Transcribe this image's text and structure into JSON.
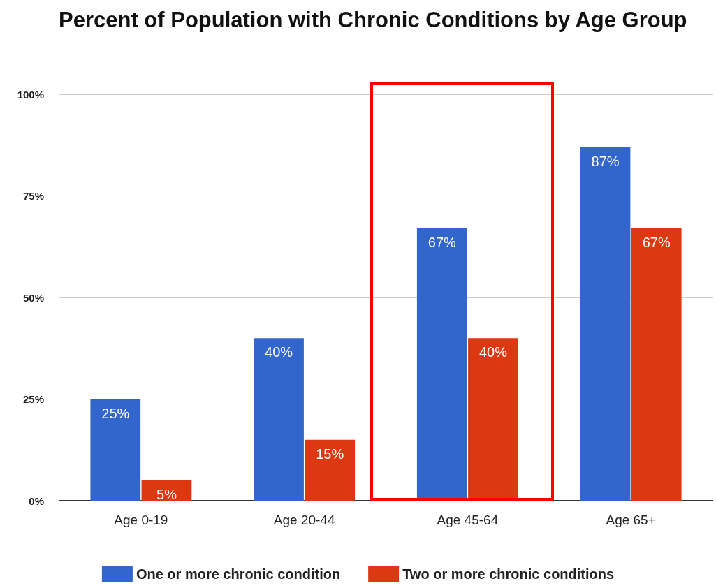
{
  "chart_data": {
    "type": "bar",
    "title": "Percent of Population with Chronic Conditions by Age Group",
    "categories": [
      "Age 0-19",
      "Age 20-44",
      "Age 45-64",
      "Age 65+"
    ],
    "series": [
      {
        "name": "One or more chronic condition",
        "color": "#3366cc",
        "values": [
          25,
          40,
          67,
          87
        ],
        "value_labels": [
          "25%",
          "40%",
          "67%",
          "87%"
        ]
      },
      {
        "name": "Two or more chronic conditions",
        "color": "#dc3912",
        "values": [
          5,
          15,
          40,
          67
        ],
        "value_labels": [
          "5%",
          "15%",
          "40%",
          "67%"
        ]
      }
    ],
    "ylim": [
      0,
      100
    ],
    "yticks": [
      {
        "value": 0,
        "label": "0%"
      },
      {
        "value": 25,
        "label": "25%"
      },
      {
        "value": 50,
        "label": "50%"
      },
      {
        "value": 75,
        "label": "75%"
      },
      {
        "value": 100,
        "label": "100%"
      }
    ],
    "grid": "y",
    "legend": "bottom"
  }
}
